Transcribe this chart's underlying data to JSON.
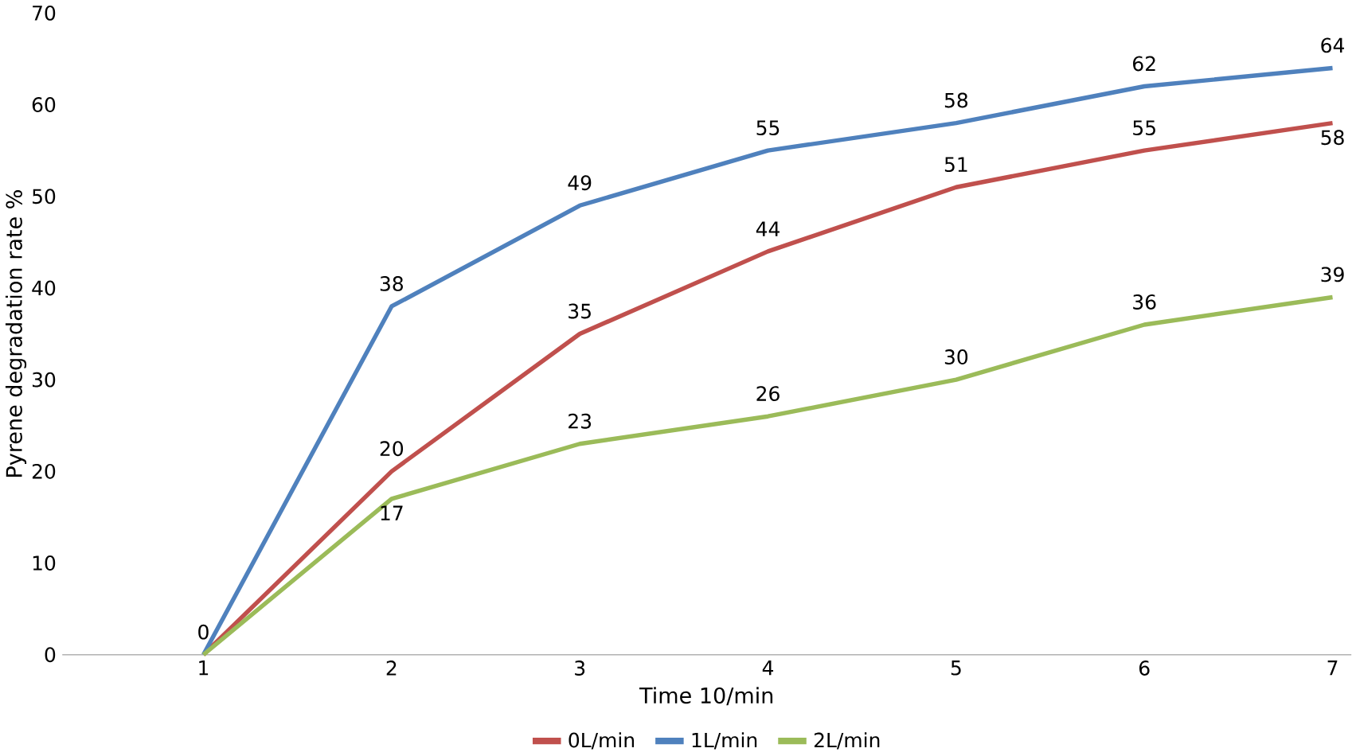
{
  "chart_data": {
    "type": "line",
    "xlabel": "Time 10/min",
    "ylabel": "Pyrene degradation rate %",
    "categories": [
      "1",
      "2",
      "3",
      "4",
      "5",
      "6",
      "7"
    ],
    "series": [
      {
        "name": "0L/min",
        "color": "#c0504d",
        "values": [
          0,
          20,
          35,
          44,
          51,
          55,
          58
        ],
        "value_labels": [
          "0",
          "20",
          "35",
          "44",
          "51",
          "55",
          "58"
        ]
      },
      {
        "name": "1L/min",
        "color": "#4f81bd",
        "values": [
          0,
          38,
          49,
          55,
          58,
          62,
          64
        ],
        "value_labels": [
          null,
          "38",
          "49",
          "55",
          "58",
          "62",
          "64"
        ]
      },
      {
        "name": "2L/min",
        "color": "#9bbb59",
        "values": [
          0,
          17,
          23,
          26,
          30,
          36,
          39
        ],
        "value_labels": [
          null,
          "17",
          "23",
          "26",
          "30",
          "36",
          "39"
        ]
      }
    ],
    "ylim": [
      0,
      70
    ],
    "yticks": [
      0,
      10,
      20,
      30,
      40,
      50,
      60,
      70
    ],
    "legend": "bottom",
    "marker": "none",
    "line_style": "solid",
    "grid": false
  }
}
